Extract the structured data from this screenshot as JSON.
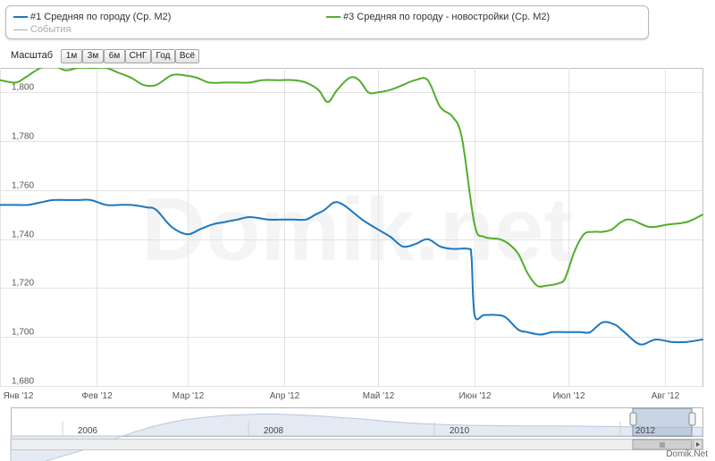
{
  "legend": {
    "series1": {
      "label": "#1 Средняя по городу (Ср. М2)",
      "color": "#1c77c0"
    },
    "series3": {
      "label": "#3 Средняя по городу - новостройки (Ср. М2)",
      "color": "#52ad2b"
    },
    "events": {
      "label": "События",
      "color": "#aaaaaa"
    }
  },
  "zoom": {
    "label": "Масштаб",
    "buttons": [
      "1м",
      "3м",
      "6м",
      "СНГ",
      "Год",
      "Всё"
    ]
  },
  "watermark": "Domik.net",
  "footer": "Domik.Net",
  "navigator": {
    "years": [
      "2006",
      "2008",
      "2010",
      "2012"
    ],
    "profile": [
      1520,
      1535,
      1560,
      1585,
      1610,
      1640,
      1670,
      1700,
      1725,
      1745,
      1760,
      1770,
      1778,
      1782,
      1785,
      1785,
      1782,
      1778,
      1772,
      1766,
      1760,
      1752,
      1745,
      1740,
      1736,
      1733,
      1731,
      1730,
      1729,
      1728,
      1728,
      1728,
      1727,
      1726,
      1725,
      1724,
      1723,
      1722,
      1722,
      1722
    ]
  },
  "chart_data": {
    "type": "line",
    "x_tick_labels": [
      "Янв '12",
      "Фев '12",
      "Мар '12",
      "Апр '12",
      "Май '12",
      "Июн '12",
      "Июл '12",
      "Авг '12"
    ],
    "x_range_days": [
      0,
      225
    ],
    "ylim": [
      1680,
      1810
    ],
    "y_ticks": [
      1680,
      1700,
      1720,
      1740,
      1760,
      1780,
      1800
    ],
    "y_tick_labels": [
      "1,680",
      "1,700",
      "1,720",
      "1,740",
      "1,760",
      "1,780",
      "1,800"
    ],
    "grid": true,
    "series": [
      {
        "name": "#1 Средняя по городу (Ср. М2)",
        "color": "#1c77c0",
        "x": [
          0,
          5,
          9,
          13,
          17,
          21,
          25,
          29,
          34,
          38,
          42,
          47,
          50,
          55,
          60,
          64,
          68,
          72,
          76,
          80,
          86,
          90,
          94,
          98,
          101,
          104,
          107,
          110,
          116,
          121,
          125,
          129,
          133,
          137,
          141,
          145,
          150,
          151,
          152,
          155,
          159,
          162,
          166,
          169,
          173,
          177,
          181,
          186,
          189,
          193,
          197,
          200,
          205,
          210,
          215,
          220,
          225
        ],
        "values": [
          1754,
          1754,
          1754,
          1755,
          1756,
          1756,
          1756,
          1756,
          1754,
          1754,
          1754,
          1753,
          1752,
          1745,
          1742,
          1744,
          1746,
          1747,
          1748,
          1749,
          1748,
          1748,
          1748,
          1748,
          1750,
          1752,
          1755,
          1754,
          1748,
          1744,
          1741,
          1737,
          1738,
          1740,
          1737,
          1736,
          1736,
          1733,
          1709,
          1709,
          1709,
          1708,
          1703,
          1702,
          1701,
          1702,
          1702,
          1702,
          1702,
          1706,
          1705,
          1702,
          1697,
          1699,
          1698,
          1698,
          1699
        ]
      },
      {
        "name": "#3 Средняя по городу - новостройки (Ср. М2)",
        "color": "#52ad2b",
        "x": [
          0,
          5,
          8,
          13,
          17,
          21,
          25,
          30,
          34,
          38,
          42,
          46,
          50,
          55,
          59,
          63,
          67,
          72,
          76,
          80,
          84,
          89,
          94,
          98,
          102,
          105,
          108,
          112,
          115,
          118,
          121,
          125,
          129,
          133,
          137,
          141,
          145,
          148,
          152,
          155,
          160,
          163,
          166,
          169,
          172,
          175,
          179,
          181,
          184,
          187,
          190,
          193,
          196,
          199,
          202,
          208,
          214,
          220,
          225
        ],
        "values": [
          1805,
          1804,
          1806,
          1810,
          1811,
          1809,
          1810,
          1810,
          1810,
          1808,
          1806,
          1803,
          1803,
          1807,
          1807,
          1806,
          1804,
          1804,
          1804,
          1804,
          1805,
          1805,
          1805,
          1804,
          1801,
          1796,
          1801,
          1806,
          1805,
          1800,
          1800,
          1801,
          1803,
          1805,
          1805,
          1794,
          1790,
          1781,
          1746,
          1741,
          1740,
          1738,
          1734,
          1726,
          1721,
          1721,
          1722,
          1724,
          1735,
          1742,
          1743,
          1743,
          1744,
          1747,
          1748,
          1745,
          1746,
          1747,
          1750
        ]
      }
    ]
  }
}
